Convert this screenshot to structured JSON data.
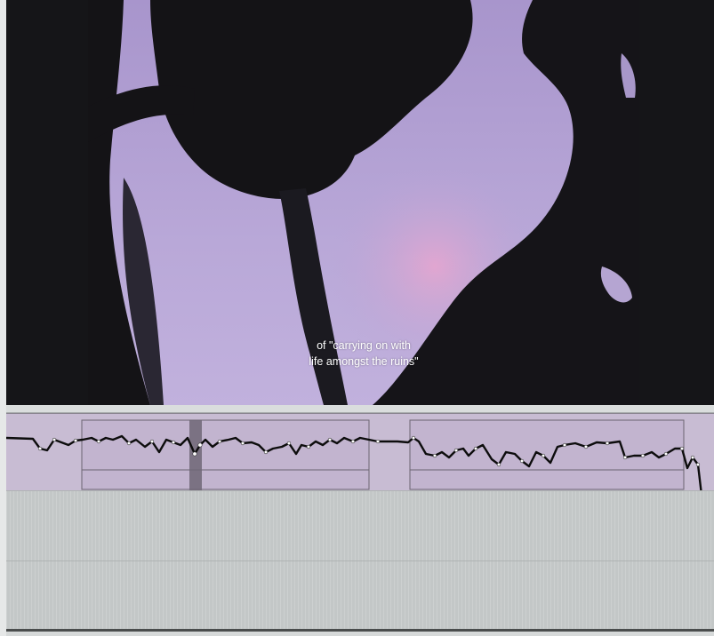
{
  "viewer": {
    "subtitle_lines": [
      "of \"carrying on with",
      "life amongst the ruins\""
    ]
  },
  "colors": {
    "sky": "#b7a4d6",
    "silhouette": "#141316",
    "audio_track": "#c8bcd3",
    "automation_line": "#0d0d0d",
    "empty_track": "#c3c7c7"
  },
  "timeline": {
    "tracks": [
      "audio-automation-track",
      "empty-track-1",
      "empty-track-2"
    ]
  }
}
